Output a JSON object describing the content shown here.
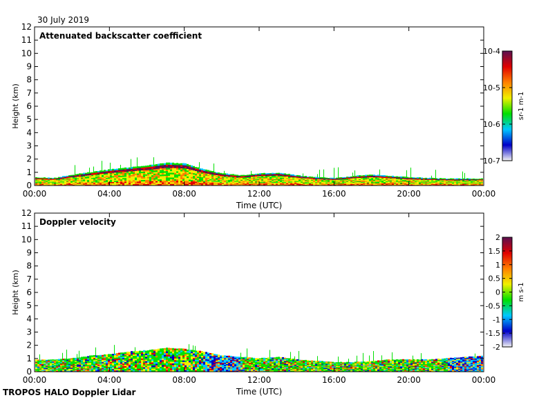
{
  "date": "30 July 2019",
  "footer": "TROPOS HALO Doppler Lidar",
  "colors": {
    "background": "#ffffff",
    "aerosol_green": "#33cc33",
    "layer_red": "#8b0a2a",
    "yellow": "#f0e000",
    "blue": "#2255cc"
  },
  "chart_data": [
    {
      "type": "heatmap",
      "title": "Attenuated backscatter coefficient",
      "xlabel": "Time (UTC)",
      "ylabel": "Height (km)",
      "x_ticks": [
        "00:00",
        "04:00",
        "08:00",
        "12:00",
        "16:00",
        "20:00",
        "00:00"
      ],
      "x_range_hours": [
        0,
        24
      ],
      "y_ticks": [
        0,
        1,
        2,
        3,
        4,
        5,
        6,
        7,
        8,
        9,
        10,
        11,
        12
      ],
      "ylim": [
        0,
        12
      ],
      "colorbar": {
        "label": "sr-1 m-1",
        "scale": "log",
        "range": [
          1e-07,
          0.0001
        ],
        "tick_labels": [
          "10-4",
          "10-5",
          "10-6",
          "10-7"
        ],
        "colormap": [
          "#f4f4f4",
          "#0000c8",
          "#00c8ff",
          "#00e000",
          "#f0f000",
          "#ff8000",
          "#e00000",
          "#5a1050"
        ]
      },
      "layer_top_km": {
        "times_h": [
          0,
          1,
          2,
          3,
          4,
          5,
          6,
          7,
          8,
          9,
          10,
          11,
          12,
          13,
          14,
          15,
          16,
          17,
          18,
          19,
          20,
          21,
          22,
          23,
          24
        ],
        "values": [
          0.6,
          0.55,
          0.8,
          1.0,
          1.2,
          1.35,
          1.5,
          1.7,
          1.65,
          1.2,
          0.9,
          0.75,
          0.9,
          0.95,
          0.75,
          0.6,
          0.55,
          0.7,
          0.8,
          0.7,
          0.6,
          0.55,
          0.5,
          0.5,
          0.5
        ]
      }
    },
    {
      "type": "heatmap",
      "title": "Doppler velocity",
      "xlabel": "Time (UTC)",
      "ylabel": "Height (km)",
      "x_ticks": [
        "00:00",
        "04:00",
        "08:00",
        "12:00",
        "16:00",
        "20:00",
        "00:00"
      ],
      "x_range_hours": [
        0,
        24
      ],
      "y_ticks": [
        0,
        1,
        2,
        3,
        4,
        5,
        6,
        7,
        8,
        9,
        10,
        11,
        12
      ],
      "ylim": [
        0,
        12
      ],
      "colorbar": {
        "label": "m s-1",
        "scale": "linear",
        "range": [
          -2,
          2
        ],
        "tick_labels": [
          "2",
          "1.5",
          "1",
          "0.5",
          "0",
          "-0.5",
          "-1",
          "-1.5",
          "-2"
        ],
        "colormap": [
          "#f4f4f4",
          "#0000c8",
          "#00c8ff",
          "#00e000",
          "#f0f000",
          "#ff8000",
          "#e00000",
          "#5a1050"
        ]
      },
      "signal_top_km": {
        "times_h": [
          0,
          1,
          2,
          3,
          4,
          5,
          6,
          7,
          8,
          9,
          10,
          11,
          12,
          13,
          14,
          15,
          16,
          17,
          18,
          19,
          20,
          21,
          22,
          23,
          24
        ],
        "values": [
          0.9,
          0.9,
          1.0,
          1.2,
          1.3,
          1.5,
          1.6,
          1.8,
          1.7,
          1.5,
          1.2,
          1.1,
          1.0,
          1.1,
          0.9,
          0.8,
          0.7,
          0.7,
          0.8,
          0.9,
          0.9,
          0.9,
          1.0,
          1.1,
          1.2
        ]
      }
    }
  ]
}
